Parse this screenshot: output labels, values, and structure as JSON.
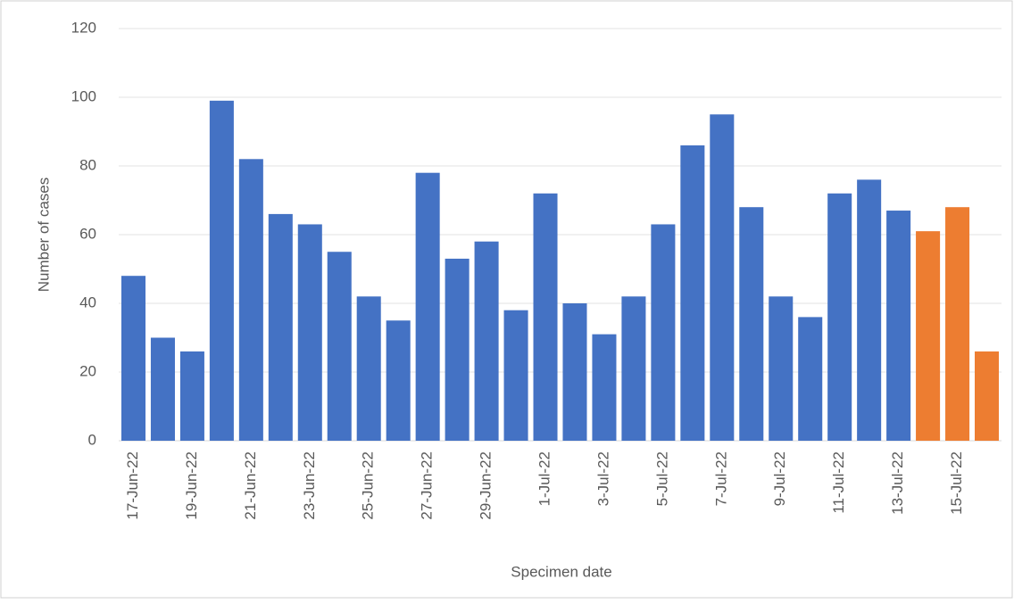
{
  "chart_data": {
    "type": "bar",
    "categories": [
      "17-Jun-22",
      null,
      "19-Jun-22",
      null,
      "21-Jun-22",
      null,
      "23-Jun-22",
      null,
      "25-Jun-22",
      null,
      "27-Jun-22",
      null,
      "29-Jun-22",
      null,
      "1-Jul-22",
      null,
      "3-Jul-22",
      null,
      "5-Jul-22",
      null,
      "7-Jul-22",
      null,
      "9-Jul-22",
      null,
      "11-Jul-22",
      null,
      "13-Jul-22",
      null,
      "15-Jul-22",
      null
    ],
    "values": [
      48,
      30,
      26,
      99,
      82,
      66,
      63,
      55,
      42,
      35,
      78,
      53,
      58,
      38,
      72,
      40,
      31,
      42,
      63,
      86,
      95,
      68,
      42,
      36,
      72,
      76,
      67,
      61,
      68,
      26
    ],
    "colors": [
      "#4472c4",
      "#4472c4",
      "#4472c4",
      "#4472c4",
      "#4472c4",
      "#4472c4",
      "#4472c4",
      "#4472c4",
      "#4472c4",
      "#4472c4",
      "#4472c4",
      "#4472c4",
      "#4472c4",
      "#4472c4",
      "#4472c4",
      "#4472c4",
      "#4472c4",
      "#4472c4",
      "#4472c4",
      "#4472c4",
      "#4472c4",
      "#4472c4",
      "#4472c4",
      "#4472c4",
      "#4472c4",
      "#4472c4",
      "#4472c4",
      "#ed7d31",
      "#ed7d31",
      "#ed7d31"
    ],
    "ylim": [
      0,
      120
    ],
    "yticks": [
      0,
      20,
      40,
      60,
      80,
      100,
      120
    ],
    "grid": true,
    "y_label": "Number of cases",
    "x_label": "Specimen date"
  }
}
